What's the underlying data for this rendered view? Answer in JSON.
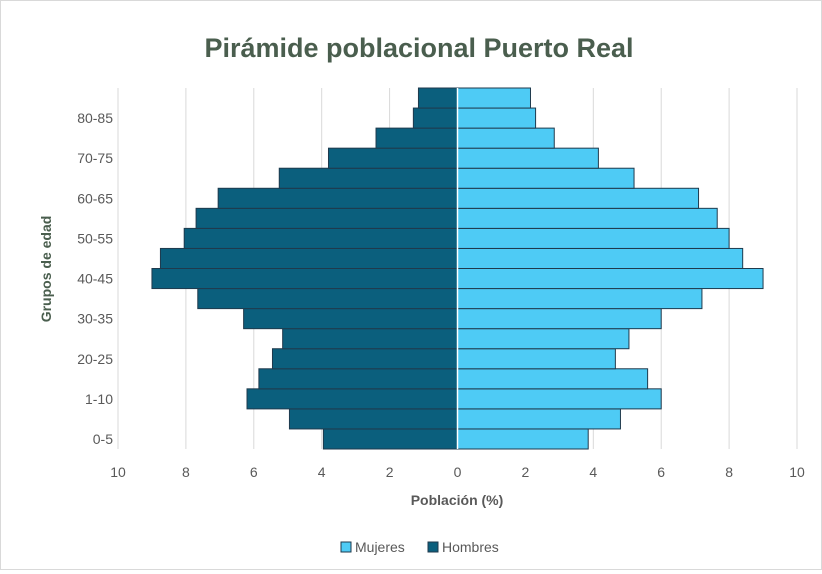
{
  "colors": {
    "mujeres": "#4ecbf5",
    "hombres": "#0b5f7d",
    "bar_stroke": "#1f3a4d",
    "grid": "#d9d9d9",
    "title": "#4a5e4e",
    "axis_text": "#595959"
  },
  "chart_data": {
    "type": "bar",
    "orientation": "horizontal",
    "title": "Pirámide poblacional Puerto Real",
    "xlabel": "Población (%)",
    "ylabel": "Grupos de edad",
    "xlim": [
      -10,
      10
    ],
    "xticks": [
      -10,
      -8,
      -6,
      -4,
      -2,
      0,
      2,
      4,
      6,
      8,
      10
    ],
    "xtick_labels": [
      "10",
      "8",
      "6",
      "4",
      "2",
      "0",
      "2",
      "4",
      "6",
      "8",
      "10"
    ],
    "categories": [
      "0-5",
      "",
      "1-10",
      "",
      "20-25",
      "",
      "30-35",
      "",
      "40-45",
      "",
      "50-55",
      "",
      "60-65",
      "",
      "70-75",
      "",
      "80-85",
      ""
    ],
    "series": [
      {
        "name": "Mujeres",
        "values": [
          3.85,
          4.8,
          6.0,
          5.6,
          4.65,
          5.05,
          6.0,
          7.2,
          9.0,
          8.4,
          8.0,
          7.65,
          7.1,
          5.2,
          4.15,
          2.85,
          2.3,
          2.15
        ]
      },
      {
        "name": "Hombres",
        "values": [
          -3.95,
          -4.95,
          -6.2,
          -5.85,
          -5.45,
          -5.15,
          -6.3,
          -7.65,
          -9.0,
          -8.75,
          -8.05,
          -7.7,
          -7.05,
          -5.25,
          -3.8,
          -2.4,
          -1.3,
          -1.15
        ]
      }
    ],
    "grid": true,
    "legend_position": "bottom"
  }
}
